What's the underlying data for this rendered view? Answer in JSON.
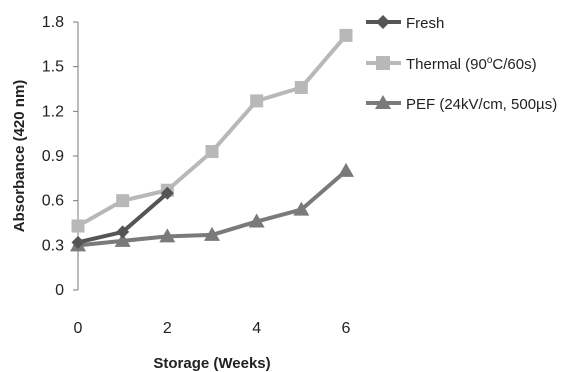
{
  "chart_data": {
    "type": "line",
    "xlabel": "Storage (Weeks)",
    "ylabel": "Absorbance (420 nm)",
    "xlim": [
      0,
      6
    ],
    "ylim": [
      0,
      1.8
    ],
    "x_ticks": [
      "0",
      "2",
      "4",
      "6"
    ],
    "y_ticks": [
      "0",
      "0.3",
      "0.6",
      "0.9",
      "1.2",
      "1.5",
      "1.8"
    ],
    "grid": false,
    "legend_position": "right",
    "series": [
      {
        "name": "Fresh",
        "marker": "diamond",
        "color": "#555555",
        "x": [
          0,
          1,
          2
        ],
        "y": [
          0.32,
          0.39,
          0.65
        ]
      },
      {
        "name": "Thermal (90°C/60s)",
        "legend_parts": [
          "Thermal (90",
          "o",
          "C/60s)"
        ],
        "marker": "square",
        "color": "#b8b8b8",
        "x": [
          0,
          1,
          2,
          3,
          4,
          5,
          6
        ],
        "y": [
          0.43,
          0.6,
          0.67,
          0.93,
          1.27,
          1.36,
          1.71
        ]
      },
      {
        "name": "PEF (24kV/cm, 500µs)",
        "marker": "triangle",
        "color": "#7a7a7a",
        "x": [
          0,
          1,
          2,
          3,
          4,
          5,
          6
        ],
        "y": [
          0.3,
          0.33,
          0.36,
          0.37,
          0.46,
          0.54,
          0.8
        ]
      }
    ]
  }
}
